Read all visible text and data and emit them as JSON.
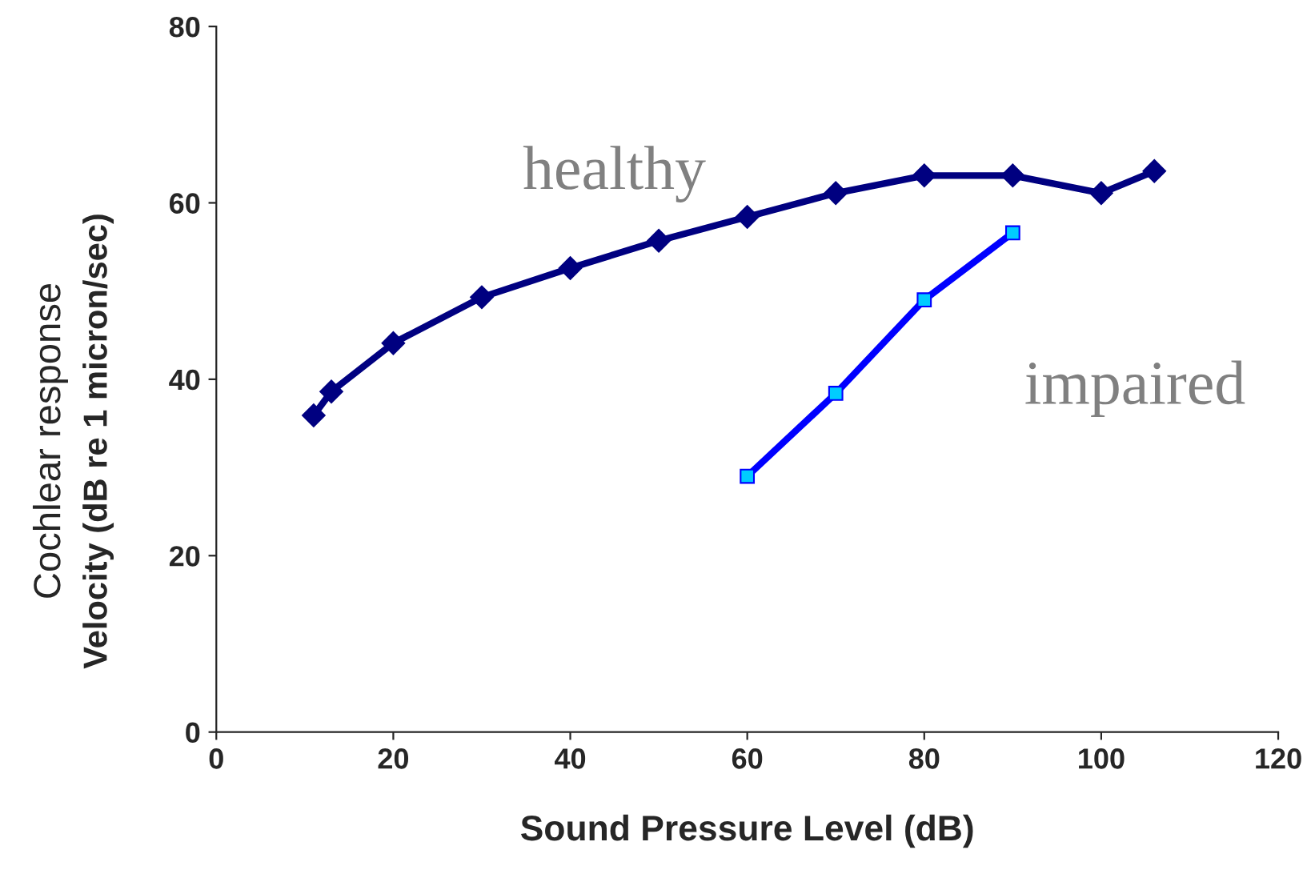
{
  "chart_data": {
    "type": "line",
    "xlabel": "Sound Pressure Level (dB)",
    "ylabel": "Cochlear response\nVelocity (dB re 1 micron/sec)",
    "series": [
      {
        "name": "healthy",
        "color": "#000080",
        "marker": "diamond",
        "x": [
          11,
          13,
          20,
          30,
          40,
          50,
          60,
          70,
          80,
          90,
          100,
          106
        ],
        "values": [
          35.9,
          38.6,
          44.1,
          49.3,
          52.6,
          55.7,
          58.4,
          61.1,
          63.1,
          63.1,
          61.1,
          63.6
        ]
      },
      {
        "name": "impaired",
        "color": "#0000ff",
        "marker": "square",
        "x": [
          60,
          70,
          80,
          90
        ],
        "values": [
          29.0,
          38.4,
          49.0,
          56.6
        ]
      }
    ],
    "xlim": [
      0,
      120
    ],
    "xticks": [
      0,
      20,
      40,
      60,
      80,
      100,
      120
    ],
    "ylim": [
      0,
      80
    ],
    "yticks": [
      0,
      20,
      40,
      60,
      80
    ],
    "grid": false,
    "legend": false,
    "line_style": "solid"
  }
}
